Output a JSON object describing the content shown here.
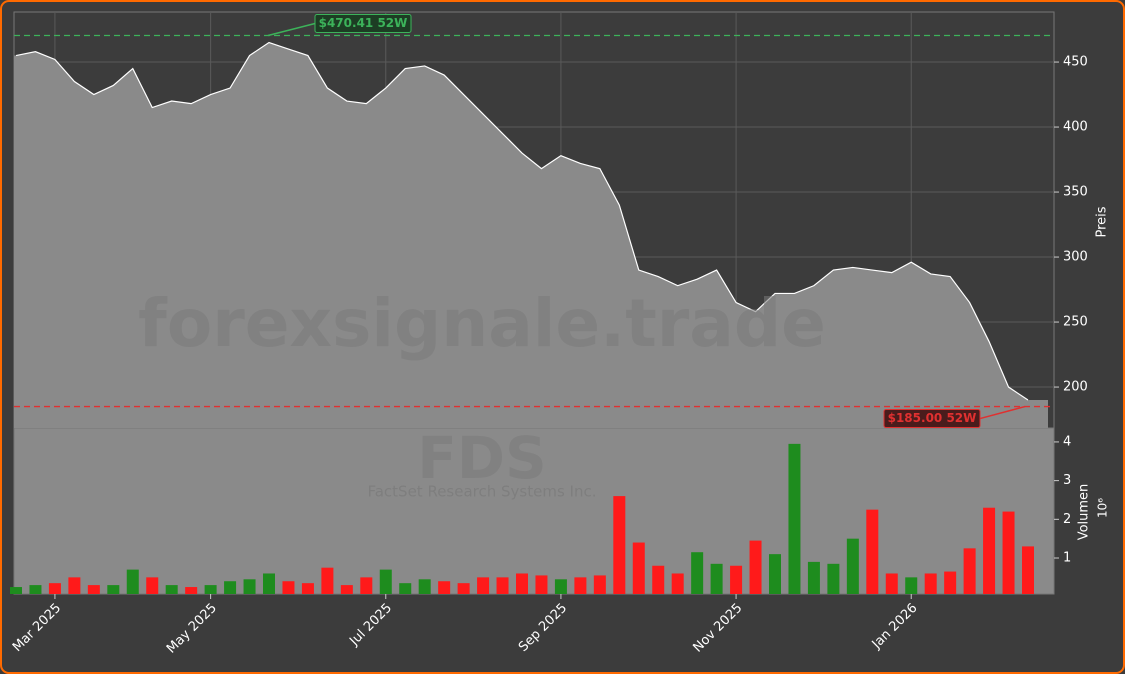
{
  "chart_data": {
    "type": "stock",
    "ticker": "FDS",
    "company": "FactSet Research Systems Inc.",
    "watermark": "forexsignale.trade",
    "categories": [
      null,
      null,
      "Mar 2025",
      null,
      null,
      null,
      null,
      null,
      null,
      null,
      "May 2025",
      null,
      null,
      null,
      null,
      null,
      null,
      null,
      null,
      "Jul 2025",
      null,
      null,
      null,
      null,
      null,
      null,
      null,
      null,
      "Sep 2025",
      null,
      null,
      null,
      null,
      null,
      null,
      null,
      null,
      "Nov 2025",
      null,
      null,
      null,
      null,
      null,
      null,
      null,
      null,
      "Jan 2026",
      null,
      null,
      null,
      null,
      null,
      null
    ],
    "series": [
      {
        "name": "Preis",
        "color": "#ffffff",
        "fill": "#8a8a8a",
        "values": [
          455,
          458,
          452,
          435,
          425,
          432,
          445,
          415,
          420,
          418,
          425,
          430,
          455,
          465,
          460,
          455,
          430,
          420,
          418,
          430,
          445,
          447,
          440,
          425,
          410,
          395,
          380,
          368,
          378,
          372,
          368,
          340,
          290,
          285,
          278,
          283,
          290,
          265,
          258,
          272,
          272,
          278,
          290,
          292,
          290,
          288,
          296,
          287,
          285,
          265,
          235,
          200,
          190
        ]
      },
      {
        "name": "Volumen",
        "axis": "y2",
        "up_color": "#1e8c1e",
        "down_color": "#ff1a1a",
        "values": [
          0.25,
          0.3,
          0.35,
          0.5,
          0.3,
          0.3,
          0.7,
          0.5,
          0.3,
          0.25,
          0.3,
          0.4,
          0.45,
          0.6,
          0.4,
          0.35,
          0.75,
          0.3,
          0.5,
          0.7,
          0.35,
          0.45,
          0.4,
          0.35,
          0.5,
          0.5,
          0.6,
          0.55,
          0.45,
          0.5,
          0.55,
          2.6,
          1.4,
          0.8,
          0.6,
          1.15,
          0.85,
          0.8,
          1.45,
          1.1,
          3.95,
          0.9,
          0.85,
          1.5,
          2.25,
          0.6,
          0.5,
          0.6,
          0.65,
          1.25,
          2.3,
          2.2,
          1.3
        ]
      }
    ],
    "ylabel": "Preis",
    "ylim": [
      168.5,
      488.5
    ],
    "yticks": [
      200,
      250,
      300,
      350,
      400,
      450
    ],
    "y2label": "Volumen",
    "y2scale": "10⁶",
    "y2lim": [
      0.07,
      4.36
    ],
    "y2ticks": [
      1,
      2,
      3,
      4
    ],
    "grid": true,
    "annotations": [
      {
        "text": "$470.41 52W",
        "value": 470.41,
        "color": "#3cb35a"
      },
      {
        "text": "$185.00 52W",
        "value": 185.0,
        "color": "#e03030"
      }
    ]
  }
}
